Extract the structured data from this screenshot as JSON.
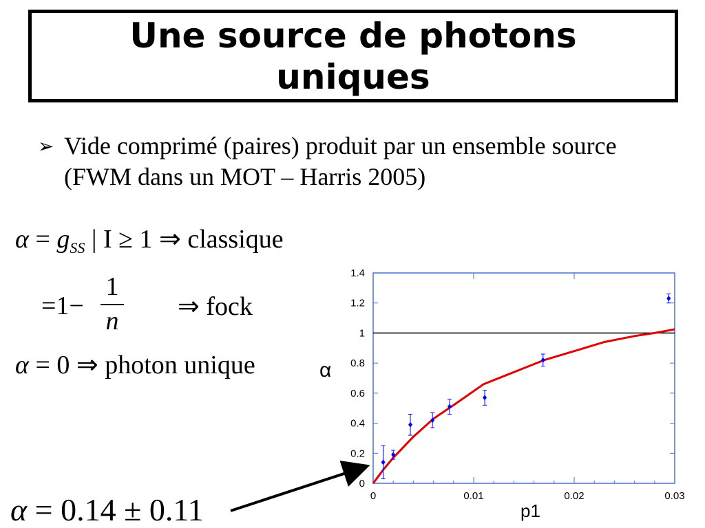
{
  "title": "Une source de photons uniques",
  "bullet": {
    "marker": "➢",
    "text": "Vide comprimé (paires) produit par un ensemble source (FWM dans un MOT – Harris 2005)"
  },
  "equations": {
    "eq1": {
      "alpha": "α",
      "eq": "=",
      "g": "g",
      "sub": "SS",
      "rest": " | I ≥ 1 ⇒ classique"
    },
    "eq2": {
      "lhs": "=1−",
      "num": "1",
      "den": "n",
      "rhs": "⇒ fock"
    },
    "eq3": {
      "alpha": "α",
      "rest": " = 0 ⇒ photon unique"
    },
    "eq4": {
      "alpha": "α",
      "rest": " = 0.14 ± 0.11"
    }
  },
  "chart_data": {
    "type": "scatter",
    "xlabel": "p1",
    "ylabel": "α",
    "xlim": [
      0,
      0.03
    ],
    "ylim": [
      0,
      1.4
    ],
    "xticks": [
      0,
      0.01,
      0.02,
      0.03
    ],
    "xtick_labels": [
      "0",
      "0.01",
      "0.02",
      "0.03"
    ],
    "yticks": [
      0,
      0.2,
      0.4,
      0.6,
      0.8,
      1,
      1.2,
      1.4
    ],
    "ytick_labels": [
      "0",
      "0.2",
      "0.4",
      "0.6",
      "0.8",
      "1",
      "1.2",
      "1.4"
    ],
    "reference_line": 1,
    "points": [
      {
        "x": 0.001,
        "y": 0.14,
        "err": 0.11
      },
      {
        "x": 0.002,
        "y": 0.19,
        "err": 0.03
      },
      {
        "x": 0.0037,
        "y": 0.39,
        "err": 0.07
      },
      {
        "x": 0.0059,
        "y": 0.42,
        "err": 0.05
      },
      {
        "x": 0.0076,
        "y": 0.51,
        "err": 0.05
      },
      {
        "x": 0.0111,
        "y": 0.57,
        "err": 0.05
      },
      {
        "x": 0.0169,
        "y": 0.82,
        "err": 0.04
      },
      {
        "x": 0.0294,
        "y": 1.23,
        "err": 0.03
      }
    ],
    "fit_curve": {
      "x": [
        0,
        0.001,
        0.002,
        0.004,
        0.006,
        0.008,
        0.011,
        0.014,
        0.017,
        0.02,
        0.023,
        0.026,
        0.028,
        0.03
      ],
      "y": [
        0,
        0.09,
        0.17,
        0.31,
        0.43,
        0.52,
        0.66,
        0.74,
        0.82,
        0.88,
        0.94,
        0.98,
        1.0,
        1.025
      ]
    },
    "colors": {
      "points": "#0000ff",
      "fit": "#e00000",
      "reference": "#000000",
      "frame": "#4a70d0"
    }
  }
}
